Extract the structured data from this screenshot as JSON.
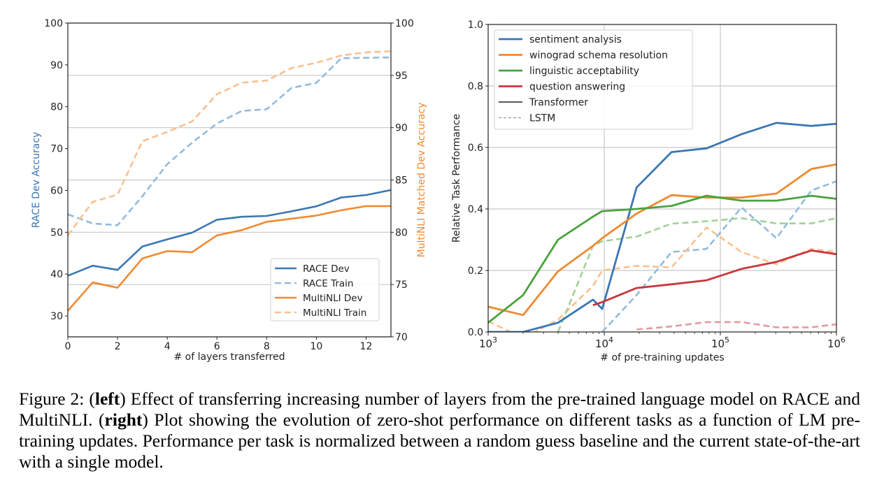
{
  "chart_data": [
    {
      "type": "line",
      "panel": "left",
      "title": "",
      "xlabel": "# of layers transferred",
      "ylabel": "RACE Dev Accuracy",
      "ylabel_right": "MultiNLI Matched Dev Accuracy",
      "xlim": [
        0,
        13
      ],
      "ylim": [
        25,
        100
      ],
      "ylim_right": [
        70,
        100
      ],
      "xticks": [
        "0",
        "2",
        "4",
        "6",
        "8",
        "10",
        "12"
      ],
      "xtick_values": [
        0,
        2,
        4,
        6,
        8,
        10,
        12
      ],
      "yticks": [
        "30",
        "40",
        "50",
        "60",
        "70",
        "80",
        "90",
        "100"
      ],
      "ytick_values": [
        30,
        40,
        50,
        60,
        70,
        80,
        90,
        100
      ],
      "yticks_right": [
        "70",
        "75",
        "80",
        "85",
        "90",
        "95",
        "100"
      ],
      "ytick_values_right": [
        70,
        75,
        80,
        85,
        90,
        95,
        100
      ],
      "grid": "horizontal at right-axis ticks",
      "legend_position": "lower-right",
      "x": [
        0,
        1,
        2,
        3,
        4,
        5,
        6,
        7,
        8,
        9,
        10,
        11,
        12,
        13
      ],
      "series": [
        {
          "name": "RACE Dev",
          "axis": "left",
          "style": "solid",
          "color": "#3a77b4",
          "values": [
            39.6,
            42.0,
            41.0,
            46.6,
            48.3,
            49.9,
            53.0,
            53.7,
            53.9,
            55.0,
            56.2,
            58.3,
            58.9,
            60.1
          ]
        },
        {
          "name": "RACE Train",
          "axis": "left",
          "style": "dashed",
          "color": "#93bbdd",
          "values": [
            54.3,
            52.1,
            51.7,
            58.6,
            66.3,
            71.4,
            76.0,
            79.0,
            79.4,
            84.5,
            85.7,
            91.6,
            91.7,
            91.8
          ]
        },
        {
          "name": "MultiNLI Dev",
          "axis": "right",
          "style": "solid",
          "color": "#f08a30",
          "values": [
            72.5,
            75.2,
            74.7,
            77.5,
            78.2,
            78.1,
            79.7,
            80.2,
            81.0,
            81.3,
            81.6,
            82.1,
            82.5,
            82.5
          ]
        },
        {
          "name": "MultiNLI Train",
          "axis": "right",
          "style": "dashed",
          "color": "#f7c191",
          "values": [
            79.7,
            82.9,
            83.6,
            88.7,
            89.6,
            90.6,
            93.2,
            94.3,
            94.5,
            95.7,
            96.2,
            96.9,
            97.2,
            97.3
          ]
        }
      ]
    },
    {
      "type": "line",
      "panel": "right",
      "title": "",
      "xlabel": "# of pre-training updates",
      "ylabel": "Relative Task Performance",
      "xscale": "log",
      "xlim": [
        1000,
        1000000
      ],
      "ylim": [
        0.0,
        1.0
      ],
      "xticks": [
        "10^3",
        "10^4",
        "10^5",
        "10^6"
      ],
      "xtick_values": [
        1000,
        10000,
        100000,
        1000000
      ],
      "yticks": [
        "0.0",
        "0.2",
        "0.4",
        "0.6",
        "0.8",
        "1.0"
      ],
      "ytick_values": [
        0.0,
        0.2,
        0.4,
        0.6,
        0.8,
        1.0
      ],
      "grid": true,
      "legend_position": "top-left",
      "legend": [
        {
          "label": "sentiment analysis",
          "color": "#3a77b4",
          "style": "solid"
        },
        {
          "label": "winograd schema resolution",
          "color": "#f08a30",
          "style": "solid"
        },
        {
          "label": "linguistic acceptability",
          "color": "#48a23c",
          "style": "solid"
        },
        {
          "label": "question answering",
          "color": "#c9363a",
          "style": "solid"
        },
        {
          "label": "Transformer",
          "color": "#222222",
          "style": "solid"
        },
        {
          "label": "LSTM",
          "color": "#999999",
          "style": "dashed"
        }
      ],
      "x": [
        1000,
        2000,
        4000,
        8000,
        9600,
        19000,
        38000,
        76000,
        152000,
        304000,
        608000,
        1000000
      ],
      "series": [
        {
          "name": "sentiment analysis (Transformer)",
          "style": "solid",
          "color": "#3a77b4",
          "values": [
            0.0,
            0.0,
            0.03,
            0.105,
            0.075,
            0.47,
            0.585,
            0.597,
            0.643,
            0.68,
            0.67,
            0.677
          ]
        },
        {
          "name": "winograd schema resolution (Transformer)",
          "style": "solid",
          "color": "#f08a30",
          "values": [
            0.082,
            0.055,
            0.197,
            0.28,
            0.305,
            0.385,
            0.445,
            0.437,
            0.437,
            0.45,
            0.53,
            0.545
          ]
        },
        {
          "name": "linguistic acceptability (Transformer)",
          "style": "solid",
          "color": "#48a23c",
          "values": [
            0.03,
            0.12,
            0.3,
            0.375,
            0.393,
            0.4,
            0.41,
            0.443,
            0.427,
            0.427,
            0.443,
            0.433
          ]
        },
        {
          "name": "question answering (Transformer)",
          "style": "solid",
          "color": "#c9363a",
          "values": [
            null,
            null,
            null,
            0.087,
            0.097,
            0.143,
            0.155,
            0.168,
            0.205,
            0.228,
            0.265,
            0.253
          ]
        },
        {
          "name": "sentiment analysis (LSTM)",
          "style": "dashed",
          "color": "#93bbdd",
          "values": [
            null,
            null,
            null,
            null,
            0.0,
            0.12,
            0.26,
            0.27,
            0.405,
            0.305,
            0.46,
            0.49
          ]
        },
        {
          "name": "winograd schema resolution (LSTM)",
          "style": "dashed",
          "color": "#f7c191",
          "values": [
            0.035,
            -0.02,
            0.04,
            0.15,
            0.2,
            0.215,
            0.21,
            0.34,
            0.26,
            0.22,
            0.27,
            0.26
          ]
        },
        {
          "name": "linguistic acceptability (LSTM)",
          "style": "dashed",
          "color": "#a2d196",
          "values": [
            null,
            null,
            0.0,
            0.28,
            0.295,
            0.31,
            0.352,
            0.36,
            0.37,
            0.353,
            0.353,
            0.37
          ]
        },
        {
          "name": "question answering (LSTM)",
          "style": "dashed",
          "color": "#e59a9c",
          "values": [
            null,
            null,
            null,
            null,
            null,
            0.008,
            0.018,
            0.032,
            0.032,
            0.015,
            0.015,
            0.025
          ]
        }
      ]
    }
  ],
  "caption": {
    "prefix": "Figure 2: (",
    "left_bold": "left",
    "left_text": ") Effect of transferring increasing number of layers from the pre-trained language model on RACE and MultiNLI. (",
    "right_bold": "right",
    "right_text": ") Plot showing the evolution of zero-shot performance on different tasks as a function of LM pre-training updates. Performance per task is normalized between a random guess baseline and the current state-of-the-art with a single model."
  }
}
